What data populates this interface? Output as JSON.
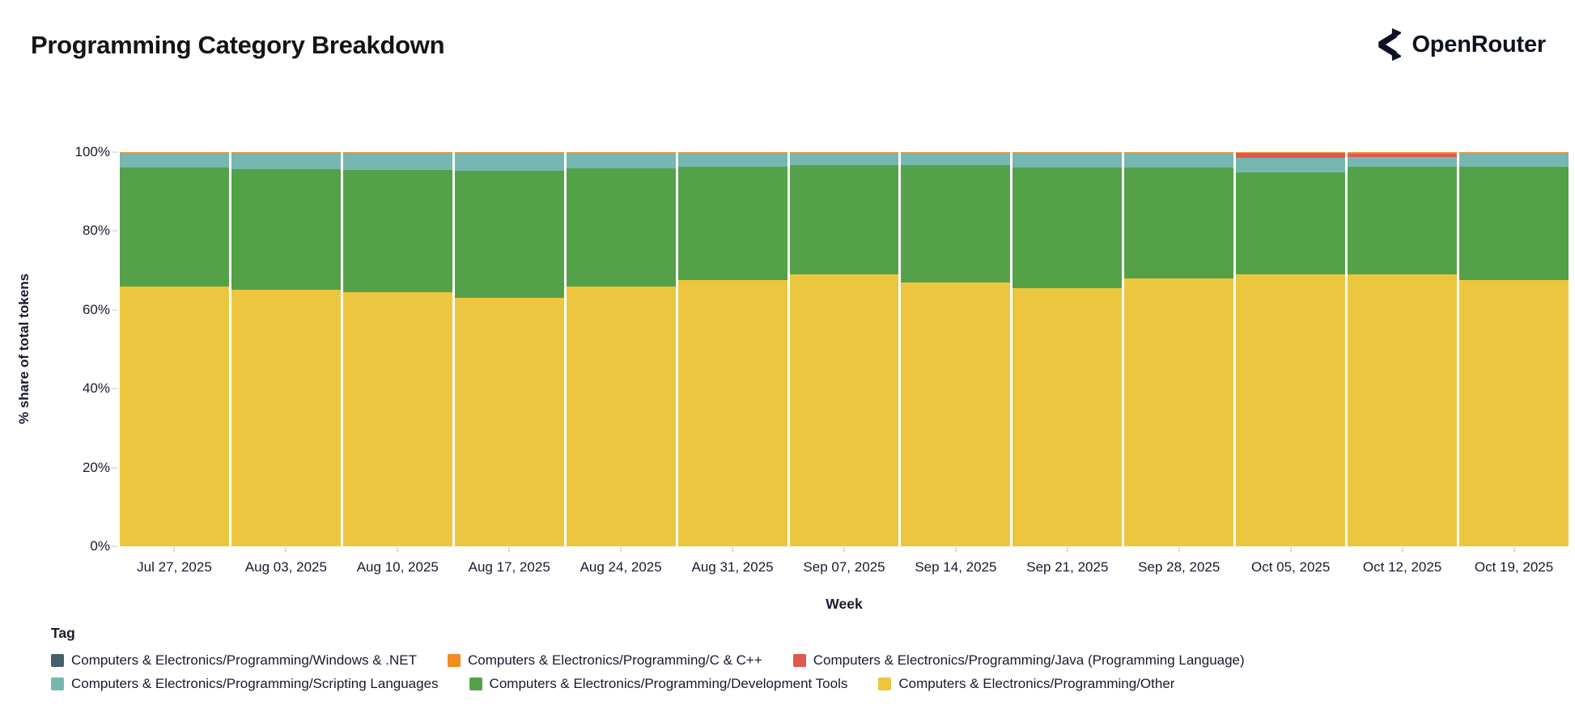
{
  "header": {
    "title": "Programming Category Breakdown",
    "brand": "OpenRouter"
  },
  "chart_data": {
    "type": "bar",
    "stacked": true,
    "normalized_percent": true,
    "title": "Programming Category Breakdown",
    "xlabel": "Week",
    "ylabel": "% share of total tokens",
    "ylim": [
      0,
      100
    ],
    "yticks": [
      0,
      20,
      40,
      60,
      80,
      100
    ],
    "ytick_labels": [
      "0%",
      "20%",
      "40%",
      "60%",
      "80%",
      "100%"
    ],
    "grid": false,
    "categories": [
      "Jul 27, 2025",
      "Aug 03, 2025",
      "Aug 10, 2025",
      "Aug 17, 2025",
      "Aug 24, 2025",
      "Aug 31, 2025",
      "Sep 07, 2025",
      "Sep 14, 2025",
      "Sep 21, 2025",
      "Sep 28, 2025",
      "Oct 05, 2025",
      "Oct 12, 2025",
      "Oct 19, 2025"
    ],
    "series_order": "top-to-bottom within each bar",
    "series": [
      {
        "name": "Computers & Electronics/Programming/Windows & .NET",
        "color": "#46606c",
        "pattern": "dots",
        "values": [
          0,
          0,
          0,
          0,
          0,
          0,
          0,
          0,
          0,
          0,
          0,
          0,
          0
        ]
      },
      {
        "name": "Computers & Electronics/Programming/C & C++",
        "color": "#f08c22",
        "values": [
          0.3,
          0.3,
          0.3,
          0.3,
          0.3,
          0.3,
          0.3,
          0.3,
          0.3,
          0.3,
          0.3,
          0.3,
          0.3
        ]
      },
      {
        "name": "Computers & Electronics/Programming/Java (Programming Language)",
        "color": "#e05852",
        "values": [
          0,
          0,
          0,
          0,
          0,
          0,
          0,
          0,
          0,
          0,
          1.2,
          1.0,
          0
        ]
      },
      {
        "name": "Computers & Electronics/Programming/Scripting Languages",
        "color": "#76b7b1",
        "values": [
          3.6,
          4.0,
          4.2,
          4.5,
          3.8,
          3.4,
          3.0,
          3.0,
          3.6,
          3.6,
          3.6,
          2.3,
          3.4
        ]
      },
      {
        "name": "Computers & Electronics/Programming/Development Tools",
        "color": "#55a14a",
        "values": [
          30.1,
          30.7,
          31.0,
          32.2,
          29.9,
          28.8,
          27.7,
          29.7,
          30.6,
          28.1,
          25.9,
          27.4,
          28.8
        ]
      },
      {
        "name": "Computers & Electronics/Programming/Other",
        "color": "#ecc63f",
        "values": [
          66.0,
          65.0,
          64.5,
          63.0,
          66.0,
          67.5,
          69.0,
          67.0,
          65.5,
          68.0,
          69.0,
          69.0,
          67.5
        ]
      }
    ],
    "legend_title": "Tag",
    "legend_position": "bottom",
    "legend_rows": [
      [
        0,
        1,
        2
      ],
      [
        3,
        4,
        5
      ]
    ]
  }
}
